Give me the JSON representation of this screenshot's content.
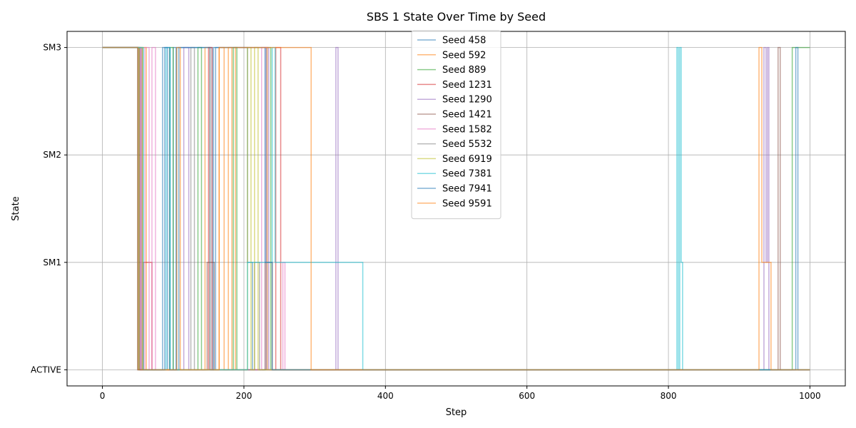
{
  "chart_data": {
    "type": "line",
    "title": "SBS 1 State Over Time by Seed",
    "xlabel": "Step",
    "ylabel": "State",
    "xlim": [
      -50,
      1050
    ],
    "ylim": [
      -0.15,
      3.15
    ],
    "x_ticks": [
      0,
      200,
      400,
      600,
      800,
      1000
    ],
    "y_ticks": [
      {
        "value": 0,
        "label": "ACTIVE"
      },
      {
        "value": 1,
        "label": "SM1"
      },
      {
        "value": 2,
        "label": "SM2"
      },
      {
        "value": 3,
        "label": "SM3"
      }
    ],
    "grid": true,
    "legend_position": "upper-center",
    "step_interpolation": "post",
    "series": [
      {
        "name": "Seed 458",
        "color": "#1f77b4",
        "steps": [
          [
            0,
            3
          ],
          [
            50,
            0
          ],
          [
            85,
            3
          ],
          [
            92,
            0
          ],
          [
            100,
            3
          ],
          [
            104,
            0
          ],
          [
            108,
            3
          ],
          [
            155,
            0
          ],
          [
            160,
            3
          ],
          [
            205,
            1
          ],
          [
            212,
            0
          ],
          [
            1000,
            0
          ]
        ]
      },
      {
        "name": "Seed 592",
        "color": "#ff7f0e",
        "steps": [
          [
            0,
            3
          ],
          [
            51,
            0
          ],
          [
            56,
            3
          ],
          [
            62,
            0
          ],
          [
            145,
            3
          ],
          [
            152,
            0
          ],
          [
            165,
            3
          ],
          [
            172,
            0
          ],
          [
            178,
            3
          ],
          [
            183,
            0
          ],
          [
            188,
            3
          ],
          [
            233,
            0
          ],
          [
            1000,
            0
          ]
        ]
      },
      {
        "name": "Seed 889",
        "color": "#2ca02c",
        "steps": [
          [
            0,
            3
          ],
          [
            52,
            0
          ],
          [
            95,
            3
          ],
          [
            100,
            0
          ],
          [
            135,
            3
          ],
          [
            140,
            0
          ],
          [
            185,
            3
          ],
          [
            190,
            0
          ],
          [
            232,
            3
          ],
          [
            238,
            0
          ],
          [
            975,
            3
          ],
          [
            1000,
            3
          ]
        ]
      },
      {
        "name": "Seed 1231",
        "color": "#d62728",
        "steps": [
          [
            0,
            3
          ],
          [
            53,
            0
          ],
          [
            58,
            1
          ],
          [
            70,
            0
          ],
          [
            150,
            3
          ],
          [
            155,
            0
          ],
          [
            245,
            3
          ],
          [
            252,
            0
          ],
          [
            1000,
            0
          ]
        ]
      },
      {
        "name": "Seed 1290",
        "color": "#9467bd",
        "steps": [
          [
            0,
            3
          ],
          [
            54,
            0
          ],
          [
            115,
            3
          ],
          [
            122,
            0
          ],
          [
            230,
            3
          ],
          [
            235,
            0
          ],
          [
            330,
            3
          ],
          [
            333,
            0
          ],
          [
            935,
            3
          ],
          [
            938,
            1
          ],
          [
            940,
            3
          ],
          [
            942,
            0
          ],
          [
            1000,
            0
          ]
        ]
      },
      {
        "name": "Seed 1421",
        "color": "#8c564b",
        "steps": [
          [
            0,
            3
          ],
          [
            50,
            0
          ],
          [
            148,
            1
          ],
          [
            158,
            0
          ],
          [
            230,
            1
          ],
          [
            240,
            0
          ],
          [
            955,
            3
          ],
          [
            958,
            0
          ],
          [
            1000,
            0
          ]
        ]
      },
      {
        "name": "Seed 1582",
        "color": "#e377c2",
        "steps": [
          [
            0,
            3
          ],
          [
            55,
            0
          ],
          [
            60,
            3
          ],
          [
            66,
            0
          ],
          [
            70,
            3
          ],
          [
            75,
            0
          ],
          [
            225,
            3
          ],
          [
            232,
            0
          ],
          [
            255,
            1
          ],
          [
            258,
            0
          ],
          [
            1000,
            0
          ]
        ]
      },
      {
        "name": "Seed 5532",
        "color": "#7f7f7f",
        "steps": [
          [
            0,
            3
          ],
          [
            56,
            0
          ],
          [
            125,
            3
          ],
          [
            130,
            0
          ],
          [
            215,
            1
          ],
          [
            222,
            0
          ],
          [
            1000,
            0
          ]
        ]
      },
      {
        "name": "Seed 6919",
        "color": "#bcbd22",
        "steps": [
          [
            0,
            3
          ],
          [
            57,
            0
          ],
          [
            205,
            3
          ],
          [
            210,
            0
          ],
          [
            215,
            3
          ],
          [
            220,
            0
          ],
          [
            1000,
            0
          ]
        ]
      },
      {
        "name": "Seed 7381",
        "color": "#17becf",
        "steps": [
          [
            0,
            3
          ],
          [
            58,
            0
          ],
          [
            90,
            3
          ],
          [
            96,
            0
          ],
          [
            205,
            1
          ],
          [
            240,
            3
          ],
          [
            244,
            1
          ],
          [
            368,
            0
          ],
          [
            812,
            3
          ],
          [
            814,
            0
          ],
          [
            816,
            3
          ],
          [
            818,
            1
          ],
          [
            820,
            0
          ],
          [
            1000,
            0
          ]
        ]
      },
      {
        "name": "Seed 7941",
        "color": "#1f77b4",
        "steps": [
          [
            0,
            3
          ],
          [
            50,
            0
          ],
          [
            88,
            3
          ],
          [
            95,
            0
          ],
          [
            105,
            3
          ],
          [
            152,
            0
          ],
          [
            157,
            3
          ],
          [
            230,
            1
          ],
          [
            240,
            0
          ],
          [
            980,
            3
          ],
          [
            983,
            0
          ],
          [
            1000,
            0
          ]
        ]
      },
      {
        "name": "Seed 9591",
        "color": "#ff7f0e",
        "steps": [
          [
            0,
            3
          ],
          [
            50,
            0
          ],
          [
            105,
            3
          ],
          [
            110,
            0
          ],
          [
            165,
            3
          ],
          [
            295,
            0
          ],
          [
            928,
            3
          ],
          [
            932,
            1
          ],
          [
            945,
            0
          ],
          [
            1000,
            0
          ]
        ]
      }
    ]
  }
}
